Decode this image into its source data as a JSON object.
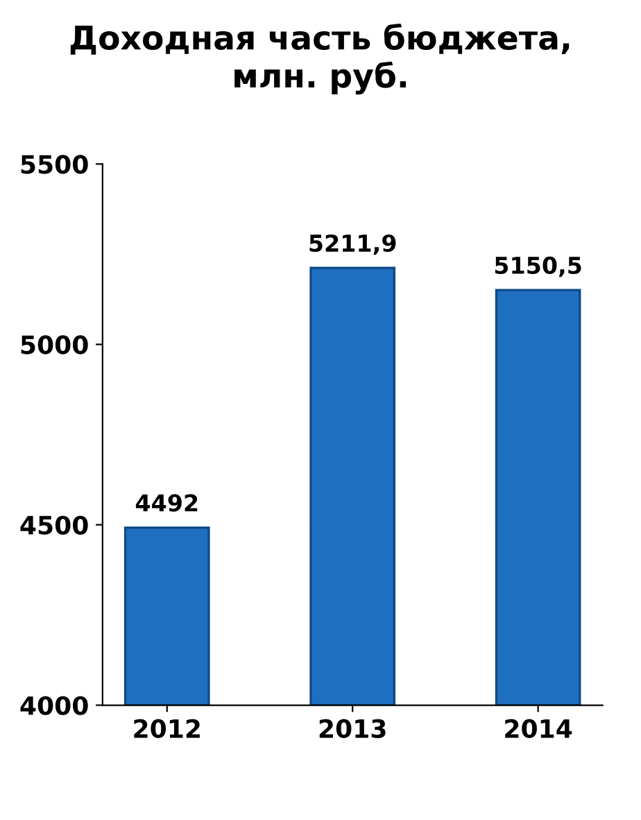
{
  "chart_data": {
    "type": "bar",
    "title": "Доходная часть бюджета,\nмлн. руб.",
    "categories": [
      "2012",
      "2013",
      "2014"
    ],
    "values": [
      4492,
      5211.9,
      5150.5
    ],
    "value_labels": [
      "4492",
      "5211,9",
      "5150,5"
    ],
    "color": "#1f6fc0",
    "ylim": [
      4000,
      5500
    ],
    "yticks": [
      4000,
      4500,
      5000,
      5500
    ],
    "grid": false
  }
}
